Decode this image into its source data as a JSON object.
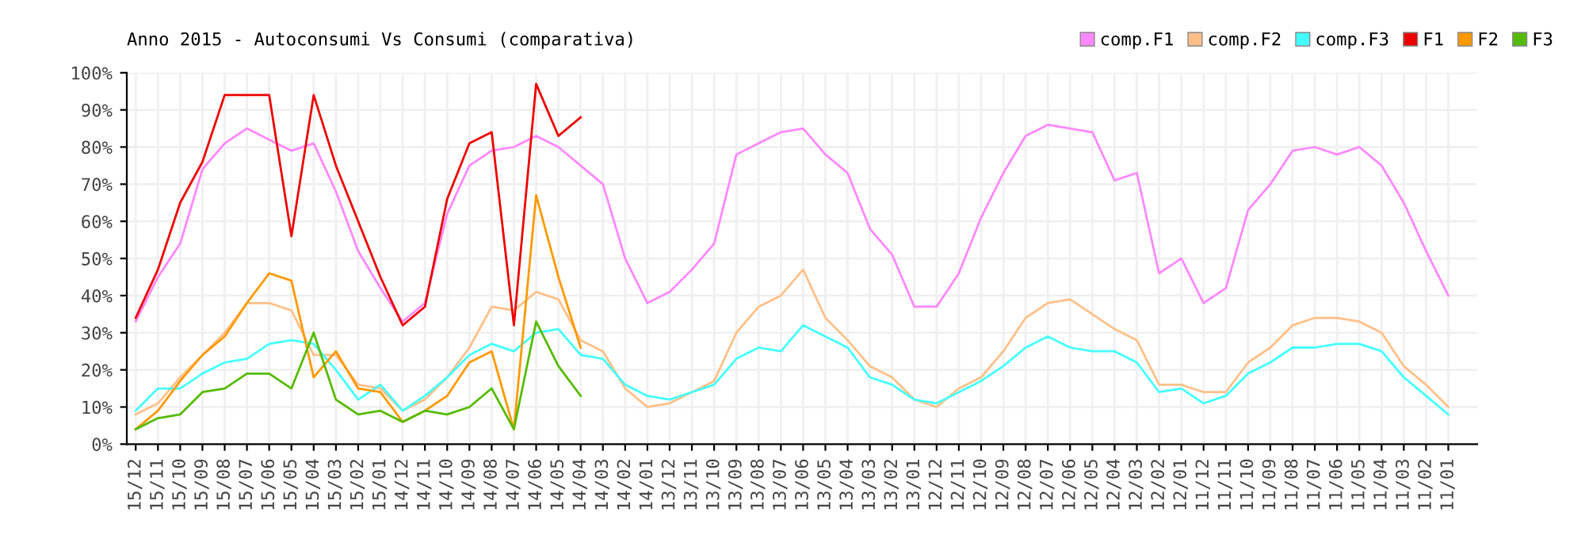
{
  "chart_data": {
    "type": "line",
    "title": "Anno 2015 - Autoconsumi Vs Consumi (comparativa)",
    "categories": [
      "15/12",
      "15/11",
      "15/10",
      "15/09",
      "15/08",
      "15/07",
      "15/06",
      "15/05",
      "15/04",
      "15/03",
      "15/02",
      "15/01",
      "14/12",
      "14/11",
      "14/10",
      "14/09",
      "14/08",
      "14/07",
      "14/06",
      "14/05",
      "14/04",
      "14/03",
      "14/02",
      "14/01",
      "13/12",
      "13/11",
      "13/10",
      "13/09",
      "13/08",
      "13/07",
      "13/06",
      "13/05",
      "13/04",
      "13/03",
      "13/02",
      "13/01",
      "12/12",
      "12/11",
      "12/10",
      "12/09",
      "12/08",
      "12/07",
      "12/06",
      "12/05",
      "12/04",
      "12/03",
      "12/02",
      "12/01",
      "11/12",
      "11/11",
      "11/10",
      "11/09",
      "11/08",
      "11/07",
      "11/06",
      "11/05",
      "11/04",
      "11/03",
      "11/02",
      "11/01"
    ],
    "series": [
      {
        "name": "comp.F1",
        "color": "#ff88ff",
        "values": [
          33,
          45,
          54,
          74,
          81,
          85,
          82,
          79,
          81,
          68,
          52,
          42,
          33,
          38,
          62,
          75,
          79,
          80,
          83,
          80,
          75,
          70,
          50,
          38,
          41,
          47,
          54,
          78,
          81,
          84,
          85,
          78,
          73,
          58,
          51,
          37,
          37,
          46,
          61,
          73,
          83,
          86,
          85,
          84,
          71,
          73,
          46,
          50,
          38,
          42,
          63,
          70,
          79,
          80,
          78,
          80,
          75,
          65,
          52,
          40
        ]
      },
      {
        "name": "comp.F2",
        "color": "#ffc088",
        "values": [
          8,
          11,
          18,
          24,
          30,
          38,
          38,
          36,
          24,
          24,
          16,
          15,
          9,
          12,
          18,
          26,
          37,
          36,
          41,
          39,
          28,
          25,
          15,
          10,
          11,
          14,
          17,
          30,
          37,
          40,
          47,
          34,
          28,
          21,
          18,
          12,
          10,
          15,
          18,
          25,
          34,
          38,
          39,
          35,
          31,
          28,
          16,
          16,
          14,
          14,
          22,
          26,
          32,
          34,
          34,
          33,
          30,
          21,
          16,
          10
        ]
      },
      {
        "name": "comp.F3",
        "color": "#44ffff",
        "values": [
          9,
          15,
          15,
          19,
          22,
          23,
          27,
          28,
          27,
          20,
          12,
          16,
          9,
          13,
          18,
          24,
          27,
          25,
          30,
          31,
          24,
          23,
          16,
          13,
          12,
          14,
          16,
          23,
          26,
          25,
          32,
          29,
          26,
          18,
          16,
          12,
          11,
          14,
          17,
          21,
          26,
          29,
          26,
          25,
          25,
          22,
          14,
          15,
          11,
          13,
          19,
          22,
          26,
          26,
          27,
          27,
          25,
          18,
          13,
          8
        ]
      },
      {
        "name": "F1",
        "color": "#ee0000",
        "values": [
          34,
          47,
          65,
          76,
          94,
          94,
          94,
          56,
          94,
          75,
          60,
          45,
          32,
          37,
          66,
          81,
          84,
          32,
          97,
          83,
          88,
          null,
          null,
          null,
          null,
          null,
          null,
          null,
          null,
          null,
          null,
          null,
          null,
          null,
          null,
          null,
          null,
          null,
          null,
          null,
          null,
          null,
          null,
          null,
          null,
          null,
          null,
          null,
          null,
          null,
          null,
          null,
          null,
          null,
          null,
          null,
          null,
          null,
          null,
          null
        ]
      },
      {
        "name": "F2",
        "color": "#ff9900",
        "values": [
          4,
          9,
          17,
          24,
          29,
          38,
          46,
          44,
          18,
          25,
          15,
          14,
          6,
          9,
          13,
          22,
          25,
          4,
          67,
          45,
          26,
          null,
          null,
          null,
          null,
          null,
          null,
          null,
          null,
          null,
          null,
          null,
          null,
          null,
          null,
          null,
          null,
          null,
          null,
          null,
          null,
          null,
          null,
          null,
          null,
          null,
          null,
          null,
          null,
          null,
          null,
          null,
          null,
          null,
          null,
          null,
          null,
          null,
          null,
          null
        ]
      },
      {
        "name": "F3",
        "color": "#55bb00",
        "values": [
          4,
          7,
          8,
          14,
          15,
          19,
          19,
          15,
          30,
          12,
          8,
          9,
          6,
          9,
          8,
          10,
          15,
          4,
          33,
          21,
          13,
          null,
          null,
          null,
          null,
          null,
          null,
          null,
          null,
          null,
          null,
          null,
          null,
          null,
          null,
          null,
          null,
          null,
          null,
          null,
          null,
          null,
          null,
          null,
          null,
          null,
          null,
          null,
          null,
          null,
          null,
          null,
          null,
          null,
          null,
          null,
          null,
          null,
          null,
          null
        ]
      }
    ],
    "ylim": [
      0,
      100
    ],
    "yticks": [
      {
        "value": 0,
        "label": "0%"
      },
      {
        "value": 10,
        "label": "10%"
      },
      {
        "value": 20,
        "label": "20%"
      },
      {
        "value": 30,
        "label": "30%"
      },
      {
        "value": 40,
        "label": "40%"
      },
      {
        "value": 50,
        "label": "50%"
      },
      {
        "value": 60,
        "label": "60%"
      },
      {
        "value": 70,
        "label": "70%"
      },
      {
        "value": 80,
        "label": "80%"
      },
      {
        "value": 90,
        "label": "90%"
      },
      {
        "value": 100,
        "label": "100%"
      }
    ],
    "grid": true,
    "legend": "top right",
    "marker": "none",
    "line_style": "solid"
  }
}
